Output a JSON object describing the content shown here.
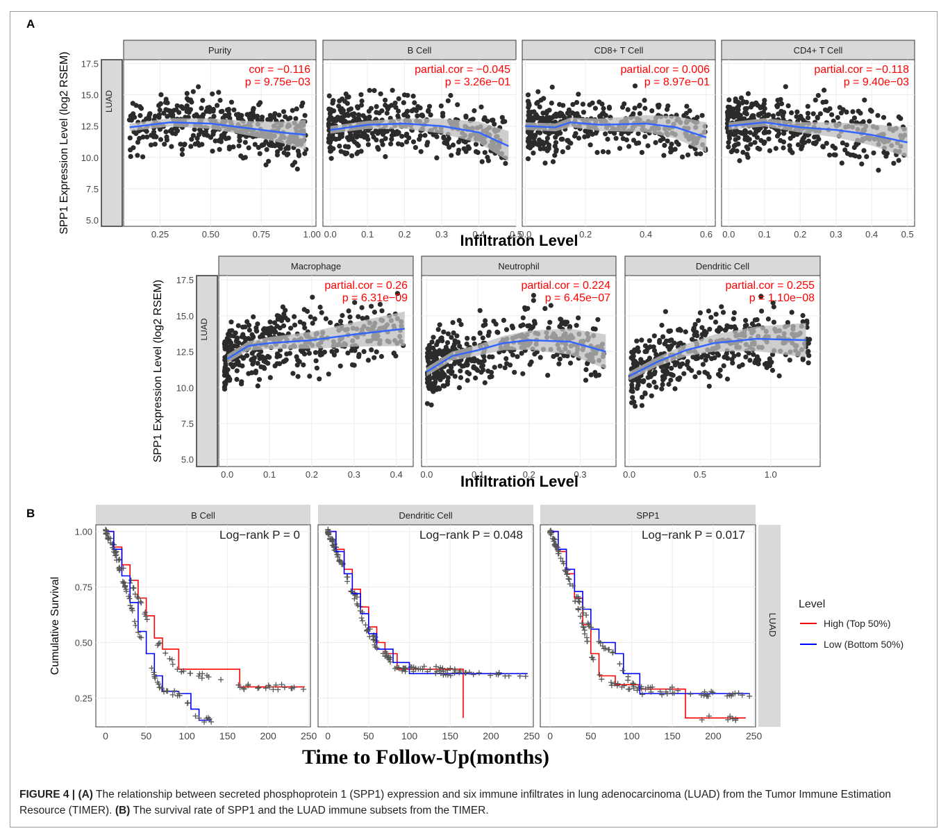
{
  "panel_labels": {
    "a": "A",
    "b": "B"
  },
  "caption": {
    "figure_label": "FIGURE 4 |",
    "a_tag": "(A)",
    "a_text": " The relationship between secreted phosphoprotein 1 (SPP1) expression and six immune infiltrates in lung adenocarcinoma (LUAD) from the Tumor Immune Estimation Resource (TIMER). ",
    "b_tag": "(B)",
    "b_text": " The survival rate of SPP1 and the LUAD immune subsets from the TIMER."
  },
  "colors": {
    "strip_fill": "#d9d9d9",
    "point": "#2b2b2b",
    "smooth": "#3366ff",
    "ribbon": "#bdbdbd",
    "grid": "#ebebeb",
    "annotation": "#ff0000",
    "km_high": "#ff0000",
    "km_low": "#0000ff",
    "censor": "#555555"
  },
  "chart_data": [
    {
      "type": "scatter",
      "ylabel": "SPP1 Expression Level (log2 RSEM)",
      "xlabel": "Infiltration Level",
      "row_strip": "LUAD",
      "ylim": [
        4.5,
        17.8
      ],
      "yticks": [
        "5.0",
        "7.5",
        "10.0",
        "12.5",
        "15.0",
        "17.5"
      ],
      "panels": [
        {
          "title": "Purity",
          "xlim": [
            0.07,
            1.02
          ],
          "xticks": [
            "0.25",
            "0.50",
            "0.75",
            "1.00"
          ],
          "annotation": [
            "cor = −0.116",
            "p = 9.75e−03"
          ],
          "fit": [
            [
              0.1,
              12.4
            ],
            [
              0.3,
              12.8
            ],
            [
              0.5,
              12.7
            ],
            [
              0.7,
              12.3
            ],
            [
              0.85,
              12.0
            ],
            [
              0.97,
              11.8
            ]
          ]
        },
        {
          "title": "B Cell",
          "xlim": [
            -0.02,
            0.5
          ],
          "xticks": [
            "0.0",
            "0.1",
            "0.2",
            "0.3",
            "0.4",
            "0.5"
          ],
          "annotation": [
            "partial.cor = −0.045",
            "p = 3.26e−01"
          ],
          "fit": [
            [
              0.0,
              12.2
            ],
            [
              0.1,
              12.6
            ],
            [
              0.2,
              12.7
            ],
            [
              0.3,
              12.5
            ],
            [
              0.4,
              12.0
            ],
            [
              0.48,
              10.9
            ]
          ]
        },
        {
          "title": "CD8+ T Cell",
          "xlim": [
            -0.01,
            0.63
          ],
          "xticks": [
            "0.0",
            "0.2",
            "0.4",
            "0.6"
          ],
          "annotation": [
            "partial.cor = 0.006",
            "p = 8.97e−01"
          ],
          "fit": [
            [
              0.0,
              12.5
            ],
            [
              0.1,
              12.4
            ],
            [
              0.15,
              12.8
            ],
            [
              0.25,
              12.6
            ],
            [
              0.4,
              12.7
            ],
            [
              0.5,
              12.4
            ],
            [
              0.6,
              11.6
            ]
          ]
        },
        {
          "title": "CD4+ T Cell",
          "xlim": [
            -0.02,
            0.52
          ],
          "xticks": [
            "0.0",
            "0.1",
            "0.2",
            "0.3",
            "0.4",
            "0.5"
          ],
          "annotation": [
            "partial.cor = −0.118",
            "p = 9.40e−03"
          ],
          "fit": [
            [
              0.0,
              12.5
            ],
            [
              0.1,
              12.8
            ],
            [
              0.2,
              12.4
            ],
            [
              0.3,
              12.2
            ],
            [
              0.4,
              11.8
            ],
            [
              0.5,
              11.2
            ]
          ]
        },
        {
          "title": "Macrophage",
          "xlim": [
            -0.02,
            0.44
          ],
          "xticks": [
            "0.0",
            "0.1",
            "0.2",
            "0.3",
            "0.4"
          ],
          "annotation": [
            "partial.cor = 0.26",
            "p = 6.31e−09"
          ],
          "fit": [
            [
              0.0,
              12.0
            ],
            [
              0.05,
              12.9
            ],
            [
              0.1,
              13.1
            ],
            [
              0.2,
              13.3
            ],
            [
              0.3,
              13.7
            ],
            [
              0.42,
              14.1
            ]
          ]
        },
        {
          "title": "Neutrophil",
          "xlim": [
            -0.01,
            0.37
          ],
          "xticks": [
            "0.0",
            "0.1",
            "0.2",
            "0.3"
          ],
          "annotation": [
            "partial.cor = 0.224",
            "p = 6.45e−07"
          ],
          "fit": [
            [
              0.0,
              11.1
            ],
            [
              0.05,
              12.2
            ],
            [
              0.1,
              12.6
            ],
            [
              0.15,
              13.1
            ],
            [
              0.2,
              13.3
            ],
            [
              0.28,
              13.2
            ],
            [
              0.35,
              12.5
            ]
          ]
        },
        {
          "title": "Dendritic Cell",
          "xlim": [
            -0.03,
            1.35
          ],
          "xticks": [
            "0.0",
            "0.5",
            "1.0"
          ],
          "annotation": [
            "partial.cor = 0.255",
            "p = 1.10e−08"
          ],
          "fit": [
            [
              0.0,
              10.8
            ],
            [
              0.2,
              11.8
            ],
            [
              0.4,
              12.6
            ],
            [
              0.6,
              13.1
            ],
            [
              0.9,
              13.4
            ],
            [
              1.25,
              13.3
            ]
          ]
        }
      ]
    },
    {
      "type": "line",
      "ylabel": "Cumulative Survival",
      "xlabel": "Time to Follow-Up(months)",
      "row_strip": "LUAD",
      "xlim": [
        -12,
        252
      ],
      "ylim": [
        0.12,
        1.03
      ],
      "xticks": [
        "0",
        "50",
        "100",
        "150",
        "200",
        "250"
      ],
      "yticks": [
        "0.25",
        "0.50",
        "0.75",
        "1.00"
      ],
      "legend": {
        "title": "Level",
        "position": "right",
        "items": [
          "High (Top 50%)",
          "Low (Bottom 50%)"
        ]
      },
      "panels": [
        {
          "title": "B Cell",
          "annotation": "Log−rank P = 0",
          "series": [
            {
              "name": "High (Top 50%)",
              "points": [
                [
                  0,
                  1.0
                ],
                [
                  10,
                  0.93
                ],
                [
                  20,
                  0.85
                ],
                [
                  30,
                  0.78
                ],
                [
                  40,
                  0.7
                ],
                [
                  50,
                  0.62
                ],
                [
                  60,
                  0.52
                ],
                [
                  70,
                  0.47
                ],
                [
                  90,
                  0.38
                ],
                [
                  165,
                  0.3
                ],
                [
                  245,
                  0.3
                ]
              ]
            },
            {
              "name": "Low (Bottom 50%)",
              "points": [
                [
                  0,
                  1.0
                ],
                [
                  10,
                  0.92
                ],
                [
                  20,
                  0.8
                ],
                [
                  30,
                  0.68
                ],
                [
                  40,
                  0.55
                ],
                [
                  50,
                  0.45
                ],
                [
                  60,
                  0.35
                ],
                [
                  70,
                  0.28
                ],
                [
                  90,
                  0.27
                ],
                [
                  105,
                  0.2
                ],
                [
                  115,
                  0.15
                ],
                [
                  130,
                  0.15
                ]
              ]
            }
          ]
        },
        {
          "title": "Dendritic Cell",
          "annotation": "Log−rank P = 0.048",
          "series": [
            {
              "name": "High (Top 50%)",
              "points": [
                [
                  0,
                  1.0
                ],
                [
                  10,
                  0.92
                ],
                [
                  20,
                  0.83
                ],
                [
                  30,
                  0.74
                ],
                [
                  40,
                  0.66
                ],
                [
                  50,
                  0.57
                ],
                [
                  60,
                  0.5
                ],
                [
                  70,
                  0.45
                ],
                [
                  85,
                  0.38
                ],
                [
                  165,
                  0.38
                ],
                [
                  166,
                  0.16
                ]
              ]
            },
            {
              "name": "Low (Bottom 50%)",
              "points": [
                [
                  0,
                  1.0
                ],
                [
                  10,
                  0.91
                ],
                [
                  20,
                  0.81
                ],
                [
                  30,
                  0.72
                ],
                [
                  40,
                  0.63
                ],
                [
                  50,
                  0.54
                ],
                [
                  60,
                  0.47
                ],
                [
                  80,
                  0.41
                ],
                [
                  100,
                  0.36
                ],
                [
                  245,
                  0.36
                ]
              ]
            }
          ]
        },
        {
          "title": "SPP1",
          "annotation": "Log−rank P = 0.017",
          "series": [
            {
              "name": "High (Top 50%)",
              "points": [
                [
                  0,
                  1.0
                ],
                [
                  10,
                  0.91
                ],
                [
                  20,
                  0.81
                ],
                [
                  30,
                  0.7
                ],
                [
                  40,
                  0.58
                ],
                [
                  50,
                  0.45
                ],
                [
                  60,
                  0.35
                ],
                [
                  80,
                  0.31
                ],
                [
                  110,
                  0.29
                ],
                [
                  165,
                  0.29
                ],
                [
                  166,
                  0.16
                ],
                [
                  240,
                  0.16
                ]
              ]
            },
            {
              "name": "Low (Bottom 50%)",
              "points": [
                [
                  0,
                  1.0
                ],
                [
                  10,
                  0.92
                ],
                [
                  20,
                  0.83
                ],
                [
                  30,
                  0.73
                ],
                [
                  40,
                  0.65
                ],
                [
                  50,
                  0.56
                ],
                [
                  60,
                  0.5
                ],
                [
                  80,
                  0.45
                ],
                [
                  90,
                  0.36
                ],
                [
                  110,
                  0.27
                ],
                [
                  245,
                  0.27
                ]
              ]
            }
          ]
        }
      ]
    }
  ]
}
